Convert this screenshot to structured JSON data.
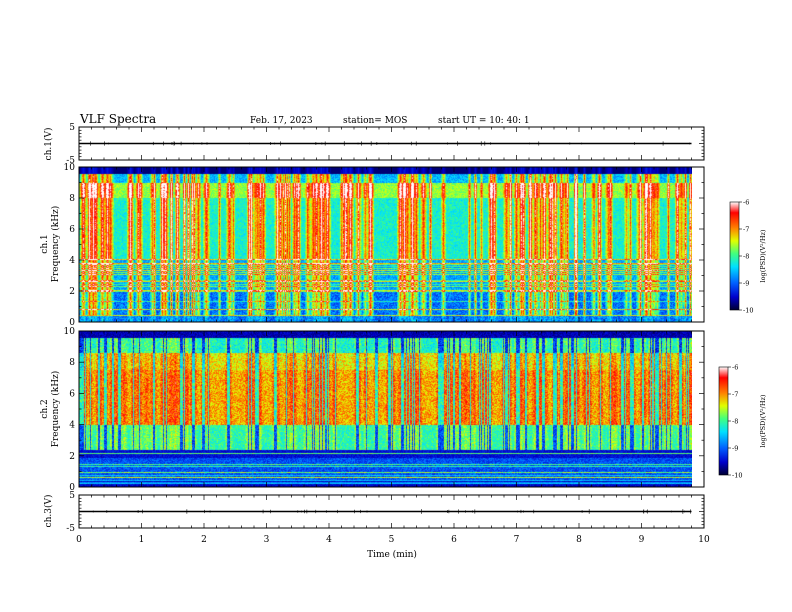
{
  "header": {
    "title": "VLF Spectra",
    "date": "Feb. 17, 2023",
    "station": "station= MOS",
    "start": "start  UT  =   10: 40: 1"
  },
  "chart_data": [
    {
      "type": "line",
      "name": "ch1-waveform",
      "ylabel": "ch.1(V)",
      "ylim": [
        -5,
        5
      ],
      "yticks": [
        "5",
        "-5"
      ],
      "xlim": [
        0,
        10
      ],
      "x": [
        0,
        9.8
      ],
      "y": [
        0,
        0
      ]
    },
    {
      "type": "heatmap",
      "name": "ch1-spectrogram",
      "ylabel": "ch.1\nFrequency (kHz)",
      "ylim": [
        0,
        10
      ],
      "yticks": [
        "0",
        "2",
        "4",
        "6",
        "8",
        "10"
      ],
      "xlim": [
        0,
        9.8
      ],
      "colorbar": {
        "label": "log(PSD)(V²/Hz)",
        "range": [
          -10,
          -6
        ],
        "ticks": [
          "-6",
          "-7",
          "-8",
          "-9",
          "-10"
        ]
      }
    },
    {
      "type": "heatmap",
      "name": "ch2-spectrogram",
      "ylabel": "ch.2\nFrequency (kHz)",
      "ylim": [
        0,
        10
      ],
      "yticks": [
        "0",
        "2",
        "4",
        "6",
        "8",
        "10"
      ],
      "xlim": [
        0,
        9.8
      ],
      "colorbar": {
        "label": "log(PSD)(V²/Hz)",
        "range": [
          -10,
          -6
        ],
        "ticks": [
          "-6",
          "-7",
          "-8",
          "-9",
          "-10"
        ]
      }
    },
    {
      "type": "line",
      "name": "ch3-waveform",
      "ylabel": "ch.3(V)",
      "ylim": [
        -5,
        5
      ],
      "yticks": [
        "5",
        "-5"
      ],
      "xlim": [
        0,
        10
      ],
      "x": [
        0,
        9.8
      ],
      "y": [
        0,
        0
      ]
    }
  ],
  "xaxis": {
    "label": "Time  (min)",
    "ticks": [
      "0",
      "1",
      "2",
      "3",
      "4",
      "5",
      "6",
      "7",
      "8",
      "9",
      "10"
    ]
  },
  "colors": {
    "background": "#ffffff",
    "frame": "#000000",
    "colormap": [
      "#000033",
      "#0000cc",
      "#0060ff",
      "#00e0ff",
      "#40ff80",
      "#e0ff00",
      "#ff8000",
      "#ff0000",
      "#ffffff"
    ]
  }
}
